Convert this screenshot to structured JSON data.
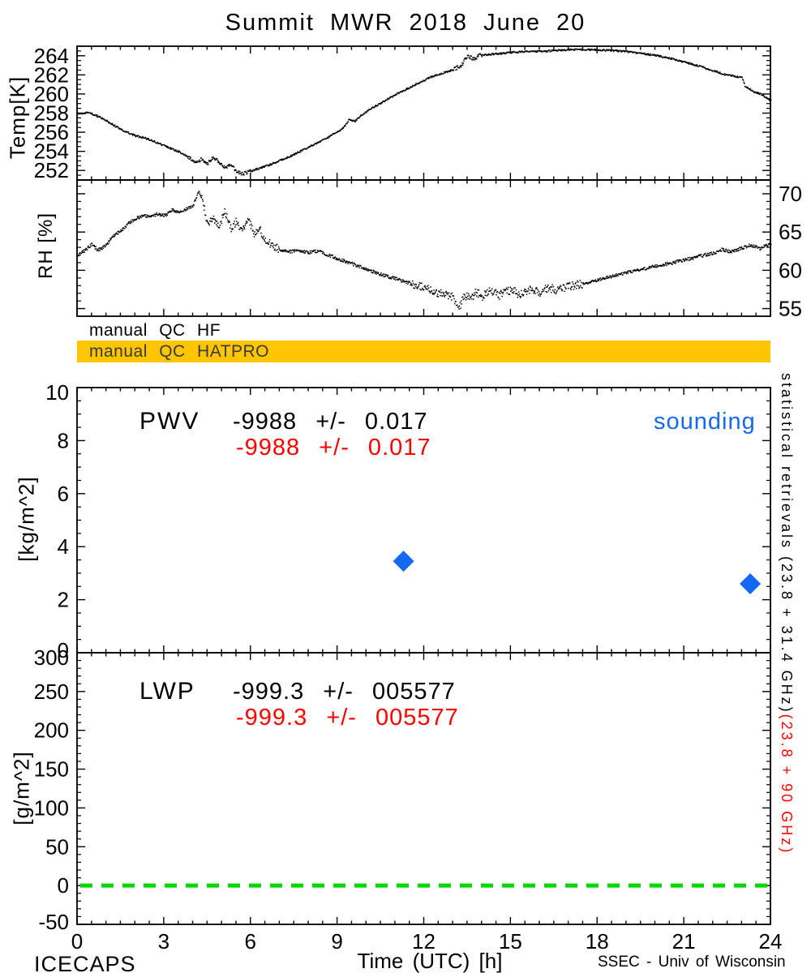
{
  "title": "Summit MWR 2018 June 20",
  "qc": {
    "hf_label": "manual QC HF",
    "hatpro_label": "manual QC HATPRO",
    "bar_color": "#ffc600"
  },
  "annotations": {
    "pwv_label": "PWV",
    "pwv_stat_black": "-9988 +/- 0.017",
    "pwv_stat_red": "-9988 +/- 0.017",
    "lwp_label": "LWP",
    "lwp_stat_black": "-999.3 +/- 005577",
    "lwp_stat_red": "-999.3 +/- 005577",
    "sounding_label": "sounding"
  },
  "right_margin": {
    "black_text": "statistical retrievals (23.8 + 31.4 GHz)",
    "red_text": "(23.8 + 90 GHz)"
  },
  "footer": {
    "left": "ICECAPS",
    "right": "SSEC - Univ of Wisconsin"
  },
  "colors": {
    "black": "#000000",
    "red": "#ff0000",
    "blue": "#1569f0",
    "green": "#00d800",
    "qc_bar": "#ffc600"
  },
  "x_axis": {
    "label": "Time (UTC) [h]",
    "lim": [
      0,
      24
    ],
    "ticks": [
      0,
      3,
      6,
      9,
      12,
      15,
      18,
      21,
      24
    ],
    "minor_step": 0.5
  },
  "chart_data": [
    {
      "id": "temp",
      "type": "scatter",
      "ylabel": "Temp[K]",
      "ylim": [
        251,
        265
      ],
      "yticks": [
        252,
        254,
        256,
        258,
        260,
        262,
        264
      ],
      "y_minor_step": 0.5,
      "ytick_side": "left",
      "series": [
        {
          "name": "surface temperature",
          "style": "black-dots",
          "keypoints": [
            [
              0,
              258.0
            ],
            [
              0.4,
              258.1
            ],
            [
              0.8,
              257.6
            ],
            [
              1.2,
              256.9
            ],
            [
              1.6,
              256.2
            ],
            [
              2.0,
              255.7
            ],
            [
              2.4,
              255.4
            ],
            [
              2.8,
              254.9
            ],
            [
              3.2,
              254.4
            ],
            [
              3.6,
              253.9
            ],
            [
              3.9,
              253.3
            ],
            [
              4.1,
              252.9
            ],
            [
              4.3,
              253.3
            ],
            [
              4.5,
              252.8
            ],
            [
              4.7,
              253.5
            ],
            [
              4.9,
              252.9
            ],
            [
              5.1,
              252.4
            ],
            [
              5.3,
              252.7
            ],
            [
              5.5,
              252.0
            ],
            [
              5.7,
              251.7
            ],
            [
              5.9,
              251.9
            ],
            [
              6.2,
              252.2
            ],
            [
              6.6,
              252.6
            ],
            [
              7.0,
              253.1
            ],
            [
              7.4,
              253.6
            ],
            [
              7.8,
              254.2
            ],
            [
              8.2,
              254.8
            ],
            [
              8.6,
              255.4
            ],
            [
              9.0,
              256.1
            ],
            [
              9.2,
              256.5
            ],
            [
              9.4,
              257.4
            ],
            [
              9.6,
              257.2
            ],
            [
              9.8,
              257.8
            ],
            [
              10.2,
              258.6
            ],
            [
              10.6,
              259.3
            ],
            [
              11.0,
              260.0
            ],
            [
              11.4,
              260.6
            ],
            [
              11.8,
              261.2
            ],
            [
              12.2,
              261.8
            ],
            [
              12.6,
              262.2
            ],
            [
              13.0,
              262.6
            ],
            [
              13.3,
              263.1
            ],
            [
              13.5,
              264.1
            ],
            [
              13.7,
              263.7
            ],
            [
              13.9,
              264.1
            ],
            [
              14.2,
              264.2
            ],
            [
              14.6,
              264.3
            ],
            [
              15.0,
              264.4
            ],
            [
              15.5,
              264.5
            ],
            [
              16.0,
              264.5
            ],
            [
              16.5,
              264.6
            ],
            [
              17.0,
              264.7
            ],
            [
              17.5,
              264.7
            ],
            [
              18.0,
              264.7
            ],
            [
              18.5,
              264.6
            ],
            [
              19.0,
              264.5
            ],
            [
              19.5,
              264.3
            ],
            [
              20.0,
              264.1
            ],
            [
              20.5,
              263.8
            ],
            [
              21.0,
              263.4
            ],
            [
              21.5,
              263.0
            ],
            [
              22.0,
              262.5
            ],
            [
              22.4,
              262.1
            ],
            [
              22.8,
              261.9
            ],
            [
              23.0,
              261.8
            ],
            [
              23.1,
              260.9
            ],
            [
              23.4,
              260.3
            ],
            [
              23.7,
              260.0
            ],
            [
              23.85,
              259.6
            ],
            [
              24,
              259.4
            ]
          ],
          "noise": [
            [
              0,
              24,
              0.09
            ],
            [
              3.8,
              6.0,
              0.18
            ],
            [
              13.0,
              14.0,
              0.2
            ]
          ]
        }
      ]
    },
    {
      "id": "rh",
      "type": "scatter",
      "ylabel": "RH [%]",
      "ylim": [
        54,
        71.8
      ],
      "yticks": [
        55,
        60,
        65,
        70
      ],
      "y_minor_step": 1,
      "ytick_side": "right",
      "series": [
        {
          "name": "relative humidity",
          "style": "black-dots",
          "keypoints": [
            [
              0,
              62.0
            ],
            [
              0.3,
              62.8
            ],
            [
              0.5,
              63.5
            ],
            [
              0.7,
              62.7
            ],
            [
              1.0,
              63.3
            ],
            [
              1.2,
              64.5
            ],
            [
              1.5,
              65.2
            ],
            [
              1.8,
              66.3
            ],
            [
              2.0,
              66.8
            ],
            [
              2.3,
              67.3
            ],
            [
              2.5,
              67.0
            ],
            [
              2.8,
              67.5
            ],
            [
              3.0,
              67.2
            ],
            [
              3.3,
              68.0
            ],
            [
              3.5,
              67.6
            ],
            [
              3.8,
              68.2
            ],
            [
              4.0,
              68.5
            ],
            [
              4.2,
              70.5
            ],
            [
              4.35,
              68.8
            ],
            [
              4.5,
              66.2
            ],
            [
              4.7,
              67.0
            ],
            [
              4.9,
              65.8
            ],
            [
              5.1,
              67.8
            ],
            [
              5.3,
              65.5
            ],
            [
              5.5,
              66.5
            ],
            [
              5.7,
              65.0
            ],
            [
              5.9,
              66.8
            ],
            [
              6.1,
              64.8
            ],
            [
              6.3,
              65.5
            ],
            [
              6.5,
              64.0
            ],
            [
              6.8,
              63.2
            ],
            [
              7.0,
              62.8
            ],
            [
              7.3,
              62.5
            ],
            [
              7.6,
              62.7
            ],
            [
              8.0,
              62.4
            ],
            [
              8.3,
              62.6
            ],
            [
              8.6,
              62.2
            ],
            [
              9.0,
              61.6
            ],
            [
              9.3,
              61.2
            ],
            [
              9.6,
              60.8
            ],
            [
              10.0,
              60.2
            ],
            [
              10.3,
              59.8
            ],
            [
              10.6,
              59.4
            ],
            [
              11.0,
              59.0
            ],
            [
              11.3,
              58.6
            ],
            [
              11.6,
              58.3
            ],
            [
              12.0,
              57.8
            ],
            [
              12.3,
              57.4
            ],
            [
              12.6,
              57.0
            ],
            [
              13.0,
              56.6
            ],
            [
              13.2,
              55.2
            ],
            [
              13.4,
              56.8
            ],
            [
              13.6,
              56.4
            ],
            [
              13.8,
              57.2
            ],
            [
              14.0,
              56.6
            ],
            [
              14.3,
              57.4
            ],
            [
              14.6,
              56.8
            ],
            [
              15.0,
              57.5
            ],
            [
              15.3,
              56.9
            ],
            [
              15.6,
              57.6
            ],
            [
              16.0,
              57.2
            ],
            [
              16.3,
              57.8
            ],
            [
              16.6,
              57.5
            ],
            [
              17.0,
              58.0
            ],
            [
              17.5,
              58.3
            ],
            [
              18.0,
              58.8
            ],
            [
              18.5,
              59.3
            ],
            [
              19.0,
              59.8
            ],
            [
              19.5,
              60.2
            ],
            [
              20.0,
              60.6
            ],
            [
              20.5,
              61.0
            ],
            [
              21.0,
              61.4
            ],
            [
              21.5,
              61.9
            ],
            [
              22.0,
              62.3
            ],
            [
              22.3,
              62.8
            ],
            [
              22.6,
              62.5
            ],
            [
              23.0,
              63.0
            ],
            [
              23.3,
              63.4
            ],
            [
              23.6,
              62.9
            ],
            [
              24,
              63.6
            ]
          ],
          "noise": [
            [
              0,
              24,
              0.2
            ],
            [
              4.3,
              7.0,
              0.5
            ],
            [
              11.5,
              17.5,
              0.55
            ]
          ]
        }
      ]
    },
    {
      "id": "pwv",
      "type": "scatter",
      "ylabel": "[kg/m^2]",
      "ylim": [
        0,
        10
      ],
      "yticks": [
        0,
        2,
        4,
        6,
        8,
        10
      ],
      "y_minor_step": 0.5,
      "ytick_side": "left",
      "marker": "diamond",
      "marker_color": "#1569f0",
      "points": [
        {
          "name": "sounding PWV",
          "t": 11.3,
          "value": 3.45
        },
        {
          "name": "sounding PWV",
          "t": 23.3,
          "value": 2.6
        }
      ]
    },
    {
      "id": "lwp",
      "type": "scatter",
      "ylabel": "[g/m^2]",
      "ylim": [
        -50,
        300
      ],
      "yticks": [
        -50,
        0,
        50,
        100,
        150,
        200,
        250,
        300
      ],
      "y_minor_step": 10,
      "ytick_side": "left",
      "zero_line": {
        "value": 0,
        "style": "dashed",
        "color": "#00d800"
      }
    }
  ]
}
